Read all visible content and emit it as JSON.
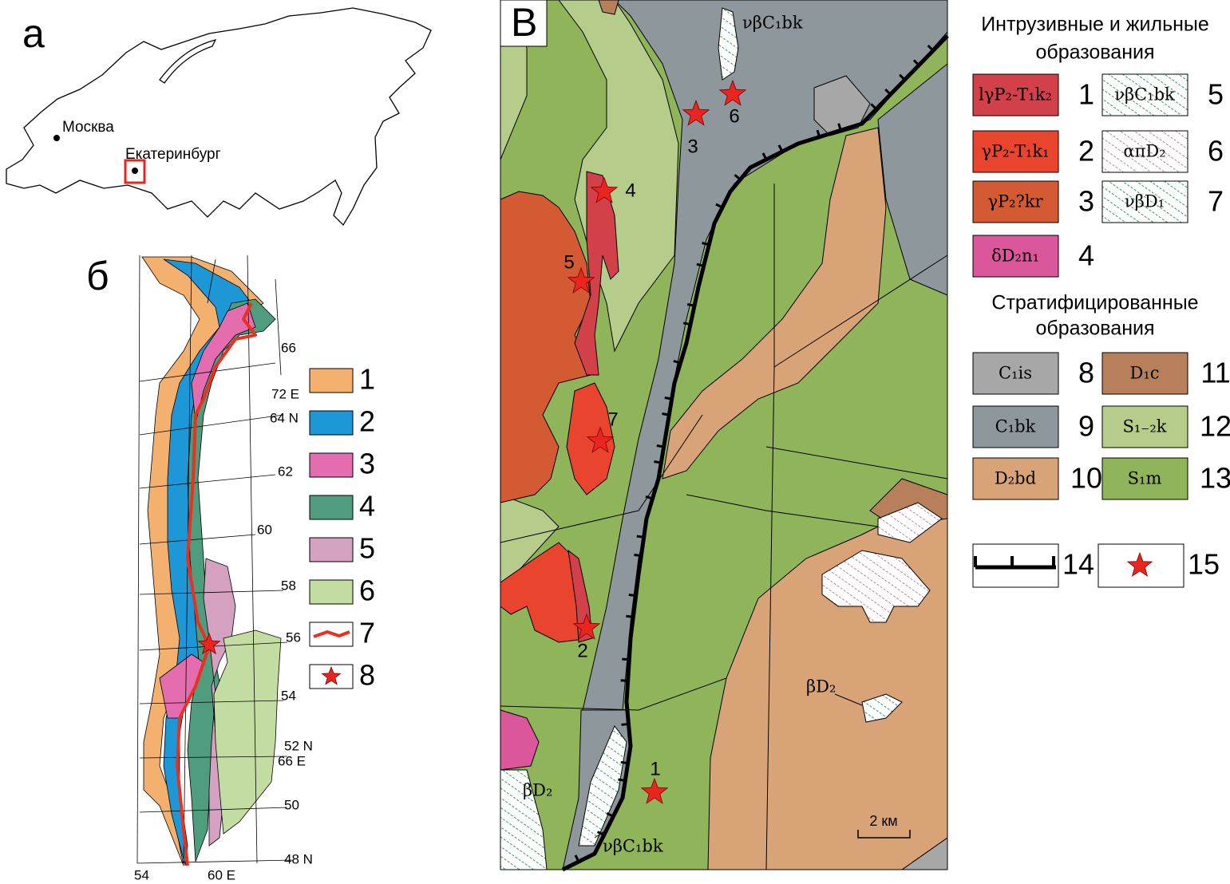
{
  "panel_a": {
    "label": "а",
    "cities": [
      "Москва",
      "Екатеринбург"
    ]
  },
  "panel_b": {
    "label": "б",
    "grid_labels": [
      "66",
      "72 E",
      "64 N",
      "62",
      "60",
      "58",
      "56",
      "54",
      "52 N",
      "66 E",
      "50",
      "48 N",
      "54",
      "60 E"
    ],
    "legend": [
      "1",
      "2",
      "3",
      "4",
      "5",
      "6",
      "7",
      "8"
    ]
  },
  "panel_c": {
    "label": "В",
    "map_labels": [
      "νβC₁bk",
      "βD₂",
      "νβC₁bk",
      "βD₂"
    ],
    "sites": [
      "1",
      "2",
      "3",
      "4",
      "5",
      "6",
      "7"
    ],
    "scale_bar": "2 км",
    "legend": {
      "intrusive_title": [
        "Интрузивные и жильные",
        "образования"
      ],
      "intrusive": [
        {
          "code": "lγP₂-T₁k₂",
          "number": "1"
        },
        {
          "code": "γP₂-T₁k₁",
          "number": "2"
        },
        {
          "code": "γP₂?kr",
          "number": "3"
        },
        {
          "code": "δD₂n₁",
          "number": "4"
        },
        {
          "code": "νβC₁bk",
          "number": "5"
        },
        {
          "code": "απD₂",
          "number": "6"
        },
        {
          "code": "νβD₁",
          "number": "7"
        }
      ],
      "stratified_title": [
        "Стратифицированные",
        "образования"
      ],
      "stratified": [
        {
          "code": "C₁is",
          "number": "8"
        },
        {
          "code": "C₁bk",
          "number": "9"
        },
        {
          "code": "D₂bd",
          "number": "10"
        },
        {
          "code": "D₁c",
          "number": "11"
        },
        {
          "code": "S₁₋₂k",
          "number": "12"
        },
        {
          "code": "S₁m",
          "number": "13"
        }
      ],
      "symbols": [
        "14",
        "15"
      ]
    }
  }
}
